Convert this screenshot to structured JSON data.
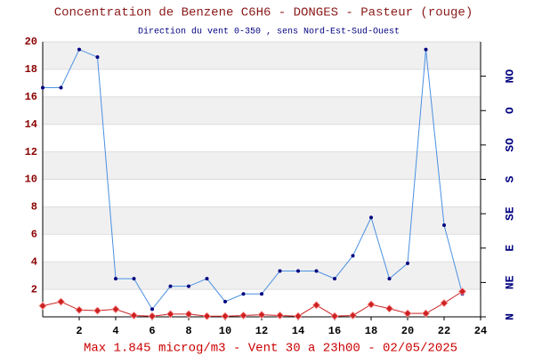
{
  "chart_data": {
    "type": "line",
    "title": "Concentration de Benzene C6H6  -   DONGES - Pasteur (rouge)",
    "subtitle": "Direction du vent 0-350 , sens Nord-Est-Sud-Ouest",
    "footer": "Max 1.845 microg/m3 - Vent 30  a 23h00 - 02/05/2025",
    "x": [
      0,
      1,
      2,
      3,
      4,
      5,
      6,
      7,
      8,
      9,
      10,
      11,
      12,
      13,
      14,
      15,
      16,
      17,
      18,
      19,
      20,
      21,
      22,
      23
    ],
    "xlim": [
      0,
      24
    ],
    "xticks": [
      2,
      4,
      6,
      8,
      10,
      12,
      14,
      16,
      18,
      20,
      22,
      24
    ],
    "ylim": [
      0,
      20
    ],
    "yticks": [
      2,
      4,
      6,
      8,
      10,
      12,
      14,
      16,
      18,
      20
    ],
    "y2lim": [
      0,
      360
    ],
    "y2ticks": [
      {
        "value": 0,
        "label": "N"
      },
      {
        "value": 45,
        "label": "NE"
      },
      {
        "value": 90,
        "label": "E"
      },
      {
        "value": 135,
        "label": "SE"
      },
      {
        "value": 180,
        "label": "S"
      },
      {
        "value": 225,
        "label": "SO"
      },
      {
        "value": 270,
        "label": "O"
      },
      {
        "value": 315,
        "label": "NO"
      }
    ],
    "grid": "bands",
    "series": [
      {
        "name": "Vent",
        "color": "#4a90e2",
        "axis": "y2",
        "values": [
          300,
          300,
          350,
          340,
          50,
          50,
          10,
          40,
          40,
          50,
          20,
          30,
          30,
          60,
          60,
          60,
          50,
          80,
          130,
          50,
          70,
          350,
          120,
          30
        ]
      },
      {
        "name": "Benzene",
        "color": "#cc2222",
        "values": [
          0.8,
          1.1,
          0.5,
          0.45,
          0.55,
          0.1,
          0.05,
          0.2,
          0.2,
          0.05,
          0.05,
          0.1,
          0.15,
          0.1,
          0.05,
          0.85,
          0.05,
          0.1,
          0.9,
          0.6,
          0.25,
          0.25,
          1.0,
          1.845
        ]
      }
    ]
  }
}
